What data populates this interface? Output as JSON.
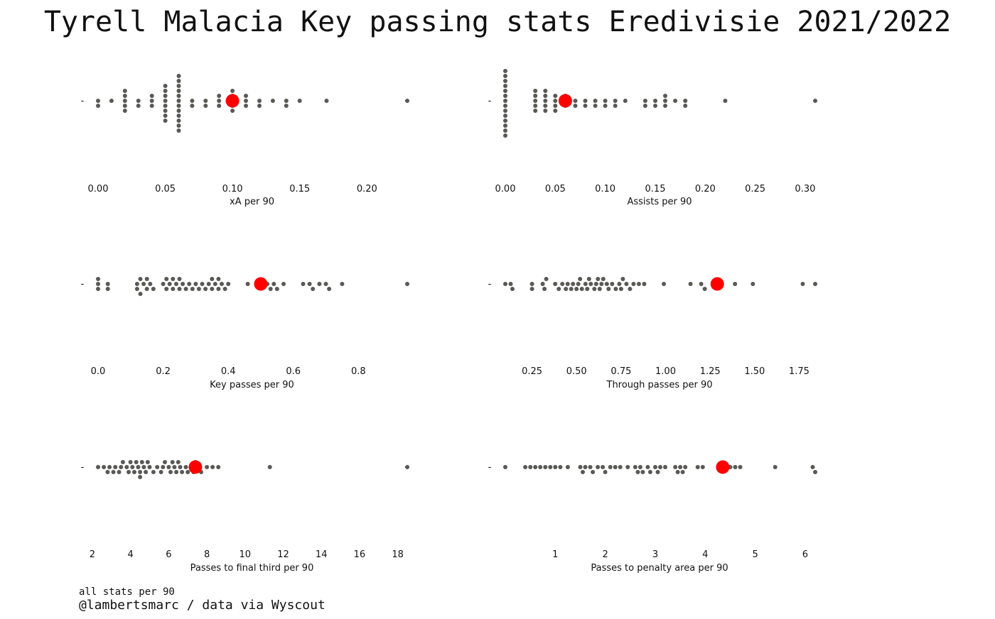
{
  "title": "Tyrell Malacia Key passing stats Eredivisie 2021/2022",
  "footer": {
    "note": "all stats per 90",
    "credit": "@lambertsmarc / data via Wyscout"
  },
  "colors": {
    "population": "#595854",
    "highlight": "#ff0000"
  },
  "chart_data": [
    {
      "type": "scatter",
      "subtype": "swarm",
      "xlabel": "xA per 90",
      "ytick": "-",
      "xlim": [
        0,
        0.23
      ],
      "xticks": [
        0.0,
        0.05,
        0.1,
        0.15,
        0.2
      ],
      "tick_labels": [
        "0.00",
        "0.05",
        "0.10",
        "0.15",
        "0.20"
      ],
      "highlight": 0.1,
      "values": [
        0,
        0,
        0.01,
        0.02,
        0.02,
        0.02,
        0.02,
        0.02,
        0.03,
        0.03,
        0.04,
        0.04,
        0.04,
        0.05,
        0.05,
        0.05,
        0.05,
        0.05,
        0.05,
        0.05,
        0.05,
        0.06,
        0.06,
        0.06,
        0.06,
        0.06,
        0.06,
        0.06,
        0.06,
        0.06,
        0.06,
        0.06,
        0.06,
        0.07,
        0.07,
        0.08,
        0.08,
        0.09,
        0.09,
        0.09,
        0.1,
        0.1,
        0.1,
        0.1,
        0.1,
        0.11,
        0.11,
        0.11,
        0.12,
        0.12,
        0.13,
        0.14,
        0.14,
        0.15,
        0.17,
        0.23
      ]
    },
    {
      "type": "scatter",
      "subtype": "swarm",
      "xlabel": "Assists per 90",
      "ytick": "-",
      "xlim": [
        0,
        0.31
      ],
      "xticks": [
        0.0,
        0.05,
        0.1,
        0.15,
        0.2,
        0.25,
        0.3
      ],
      "tick_labels": [
        "0.00",
        "0.05",
        "0.10",
        "0.15",
        "0.20",
        "0.25",
        "0.30"
      ],
      "highlight": 0.06,
      "values": [
        0,
        0,
        0,
        0,
        0,
        0,
        0,
        0,
        0,
        0,
        0,
        0,
        0,
        0,
        0.03,
        0.03,
        0.03,
        0.03,
        0.03,
        0.04,
        0.04,
        0.04,
        0.04,
        0.04,
        0.05,
        0.05,
        0.05,
        0.05,
        0.06,
        0.06,
        0.06,
        0.07,
        0.07,
        0.08,
        0.08,
        0.09,
        0.09,
        0.1,
        0.1,
        0.11,
        0.11,
        0.12,
        0.14,
        0.14,
        0.15,
        0.15,
        0.16,
        0.16,
        0.16,
        0.17,
        0.18,
        0.18,
        0.22,
        0.31
      ]
    },
    {
      "type": "scatter",
      "subtype": "swarm",
      "xlabel": "Key passes per 90",
      "ytick": "-",
      "xlim": [
        0,
        0.95
      ],
      "xticks": [
        0.0,
        0.2,
        0.4,
        0.6,
        0.8
      ],
      "tick_labels": [
        "0.0",
        "0.2",
        "0.4",
        "0.6",
        "0.8"
      ],
      "highlight": 0.5,
      "values": [
        0,
        0,
        0,
        0.03,
        0.03,
        0.12,
        0.12,
        0.13,
        0.13,
        0.14,
        0.15,
        0.15,
        0.16,
        0.17,
        0.2,
        0.21,
        0.21,
        0.22,
        0.23,
        0.23,
        0.24,
        0.25,
        0.25,
        0.26,
        0.27,
        0.28,
        0.29,
        0.3,
        0.31,
        0.32,
        0.33,
        0.34,
        0.35,
        0.35,
        0.36,
        0.37,
        0.37,
        0.38,
        0.39,
        0.4,
        0.46,
        0.52,
        0.53,
        0.54,
        0.55,
        0.57,
        0.63,
        0.65,
        0.66,
        0.68,
        0.7,
        0.71,
        0.75,
        0.95
      ]
    },
    {
      "type": "scatter",
      "subtype": "swarm",
      "xlabel": "Through passes per 90",
      "ytick": "-",
      "xlim": [
        0.1,
        1.84
      ],
      "xticks": [
        0.25,
        0.5,
        0.75,
        1.0,
        1.25,
        1.5,
        1.75
      ],
      "tick_labels": [
        "0.25",
        "0.50",
        "0.75",
        "1.00",
        "1.25",
        "1.50",
        "1.75"
      ],
      "highlight": 1.29,
      "values": [
        0.1,
        0.13,
        0.14,
        0.25,
        0.25,
        0.31,
        0.32,
        0.33,
        0.38,
        0.4,
        0.42,
        0.44,
        0.45,
        0.47,
        0.48,
        0.5,
        0.51,
        0.52,
        0.53,
        0.55,
        0.56,
        0.57,
        0.58,
        0.6,
        0.61,
        0.62,
        0.63,
        0.64,
        0.65,
        0.67,
        0.68,
        0.7,
        0.72,
        0.74,
        0.75,
        0.76,
        0.78,
        0.8,
        0.82,
        0.85,
        0.88,
        0.99,
        1.14,
        1.2,
        1.22,
        1.39,
        1.49,
        1.77,
        1.84
      ]
    },
    {
      "type": "scatter",
      "subtype": "swarm",
      "xlabel": "Passes to final third per 90",
      "ytick": "-",
      "xlim": [
        2.3,
        18.5
      ],
      "xticks": [
        2,
        4,
        6,
        8,
        10,
        12,
        14,
        16,
        18
      ],
      "tick_labels": [
        "2",
        "4",
        "6",
        "8",
        "10",
        "12",
        "14",
        "16",
        "18"
      ],
      "highlight": 7.4,
      "values": [
        2.3,
        2.6,
        2.8,
        2.9,
        3.1,
        3.2,
        3.4,
        3.5,
        3.6,
        3.8,
        3.9,
        4.0,
        4.1,
        4.2,
        4.3,
        4.4,
        4.5,
        4.5,
        4.6,
        4.7,
        4.8,
        4.9,
        5.0,
        5.2,
        5.4,
        5.6,
        5.7,
        5.8,
        6.0,
        6.1,
        6.2,
        6.3,
        6.4,
        6.5,
        6.6,
        6.7,
        6.9,
        7.0,
        7.2,
        7.3,
        7.4,
        7.5,
        7.7,
        8.0,
        8.3,
        8.6,
        11.3,
        18.5
      ]
    },
    {
      "type": "scatter",
      "subtype": "swarm",
      "xlabel": "Passes to penalty area per 90",
      "ytick": "-",
      "xlim": [
        0.0,
        6.2
      ],
      "xticks": [
        1,
        2,
        3,
        4,
        5,
        6
      ],
      "tick_labels": [
        "1",
        "2",
        "3",
        "4",
        "5",
        "6"
      ],
      "highlight": 4.35,
      "values": [
        0.0,
        0.4,
        0.5,
        0.6,
        0.7,
        0.8,
        0.9,
        1.0,
        1.1,
        1.25,
        1.5,
        1.55,
        1.6,
        1.7,
        1.75,
        1.85,
        1.95,
        2.0,
        2.1,
        2.2,
        2.3,
        2.45,
        2.6,
        2.65,
        2.7,
        2.75,
        2.85,
        2.9,
        3.0,
        3.05,
        3.1,
        3.2,
        3.4,
        3.45,
        3.5,
        3.55,
        3.6,
        3.85,
        3.95,
        4.5,
        4.6,
        4.7,
        5.4,
        6.15,
        6.2
      ]
    }
  ]
}
